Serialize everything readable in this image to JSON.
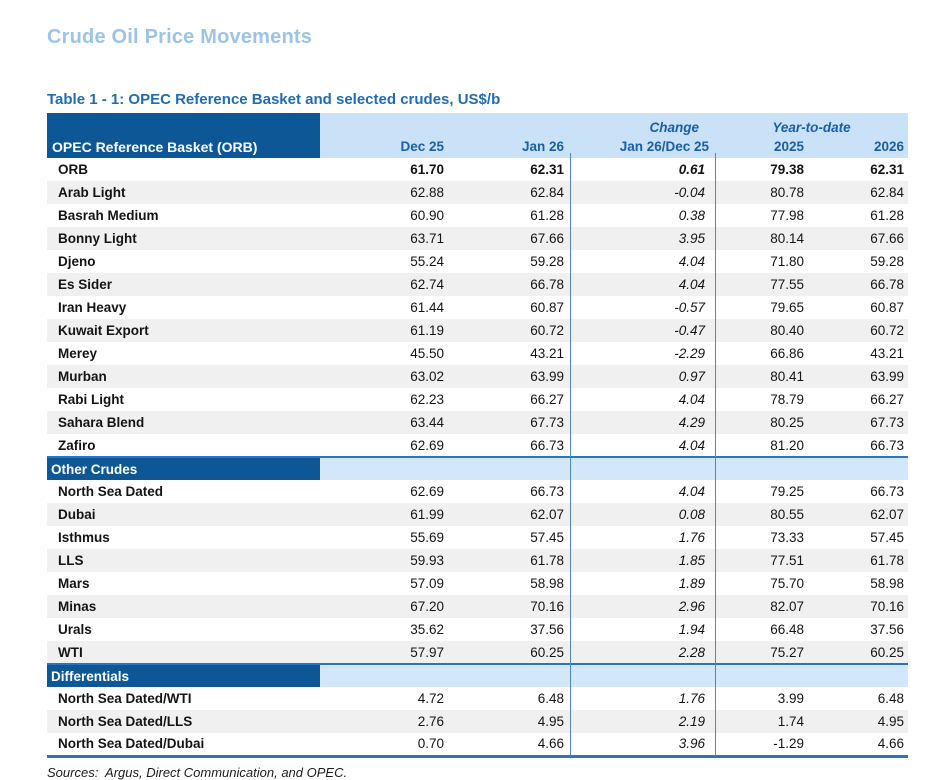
{
  "page": {
    "title": "Crude Oil Price Movements",
    "table_caption": "Table 1 - 1: OPEC Reference Basket and selected crudes, US$/b",
    "sources": "Sources:  Argus, Direct Communication, and OPEC."
  },
  "colors": {
    "navy_header": "#0E5796",
    "header_light_blue": "#C9E2F8",
    "section_light_blue": "#D3E7FA",
    "header_text_blue": "#1A5EA8",
    "title_light_blue": "#9DC3E6",
    "caption_blue": "#1F6CB5",
    "row_stripe_gray": "#F0F0F0",
    "divider_blue": "#2E75B6"
  },
  "table": {
    "corner_label": "OPEC Reference Basket (ORB)",
    "group_headers": {
      "change": "Change",
      "ytd": "Year-to-date"
    },
    "columns": [
      "Dec 25",
      "Jan 26",
      "Jan 26/Dec 25",
      "2025",
      "2026"
    ],
    "sections": [
      {
        "header": null,
        "rows": [
          {
            "name": "ORB",
            "bold": true,
            "values": [
              "61.70",
              "62.31",
              "0.61",
              "79.38",
              "62.31"
            ]
          },
          {
            "name": "Arab Light",
            "values": [
              "62.88",
              "62.84",
              "-0.04",
              "80.78",
              "62.84"
            ]
          },
          {
            "name": "Basrah Medium",
            "values": [
              "60.90",
              "61.28",
              "0.38",
              "77.98",
              "61.28"
            ]
          },
          {
            "name": "Bonny Light",
            "values": [
              "63.71",
              "67.66",
              "3.95",
              "80.14",
              "67.66"
            ]
          },
          {
            "name": "Djeno",
            "values": [
              "55.24",
              "59.28",
              "4.04",
              "71.80",
              "59.28"
            ]
          },
          {
            "name": "Es Sider",
            "values": [
              "62.74",
              "66.78",
              "4.04",
              "77.55",
              "66.78"
            ]
          },
          {
            "name": "Iran Heavy",
            "values": [
              "61.44",
              "60.87",
              "-0.57",
              "79.65",
              "60.87"
            ]
          },
          {
            "name": "Kuwait Export",
            "values": [
              "61.19",
              "60.72",
              "-0.47",
              "80.40",
              "60.72"
            ]
          },
          {
            "name": "Merey",
            "values": [
              "45.50",
              "43.21",
              "-2.29",
              "66.86",
              "43.21"
            ]
          },
          {
            "name": "Murban",
            "values": [
              "63.02",
              "63.99",
              "0.97",
              "80.41",
              "63.99"
            ]
          },
          {
            "name": "Rabi Light",
            "values": [
              "62.23",
              "66.27",
              "4.04",
              "78.79",
              "66.27"
            ]
          },
          {
            "name": "Sahara Blend",
            "values": [
              "63.44",
              "67.73",
              "4.29",
              "80.25",
              "67.73"
            ]
          },
          {
            "name": "Zafiro",
            "values": [
              "62.69",
              "66.73",
              "4.04",
              "81.20",
              "66.73"
            ]
          }
        ]
      },
      {
        "header": "Other Crudes",
        "rows": [
          {
            "name": "North Sea Dated",
            "values": [
              "62.69",
              "66.73",
              "4.04",
              "79.25",
              "66.73"
            ]
          },
          {
            "name": "Dubai",
            "values": [
              "61.99",
              "62.07",
              "0.08",
              "80.55",
              "62.07"
            ]
          },
          {
            "name": "Isthmus",
            "values": [
              "55.69",
              "57.45",
              "1.76",
              "73.33",
              "57.45"
            ]
          },
          {
            "name": "LLS",
            "values": [
              "59.93",
              "61.78",
              "1.85",
              "77.51",
              "61.78"
            ]
          },
          {
            "name": "Mars",
            "values": [
              "57.09",
              "58.98",
              "1.89",
              "75.70",
              "58.98"
            ]
          },
          {
            "name": "Minas",
            "values": [
              "67.20",
              "70.16",
              "2.96",
              "82.07",
              "70.16"
            ]
          },
          {
            "name": "Urals",
            "values": [
              "35.62",
              "37.56",
              "1.94",
              "66.48",
              "37.56"
            ]
          },
          {
            "name": "WTI",
            "values": [
              "57.97",
              "60.25",
              "2.28",
              "75.27",
              "60.25"
            ]
          }
        ]
      },
      {
        "header": "Differentials",
        "rows": [
          {
            "name": "North Sea Dated/WTI",
            "values": [
              "4.72",
              "6.48",
              "1.76",
              "3.99",
              "6.48"
            ]
          },
          {
            "name": "North Sea Dated/LLS",
            "values": [
              "2.76",
              "4.95",
              "2.19",
              "1.74",
              "4.95"
            ]
          },
          {
            "name": "North Sea Dated/Dubai",
            "values": [
              "0.70",
              "4.66",
              "3.96",
              "-1.29",
              "4.66"
            ]
          }
        ]
      }
    ]
  }
}
